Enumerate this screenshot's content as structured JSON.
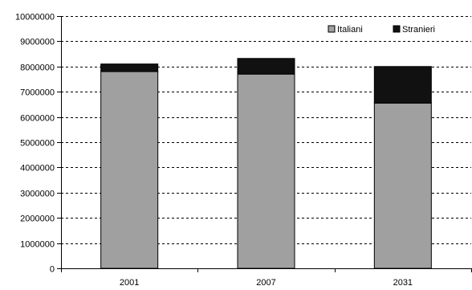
{
  "chart_data": {
    "type": "bar",
    "stacked": true,
    "title": "",
    "xlabel": "",
    "ylabel": "",
    "categories": [
      "2001",
      "2007",
      "2031"
    ],
    "series": [
      {
        "name": "Italiani",
        "color": "#a0a0a0",
        "values": [
          7800000,
          7700000,
          6550000
        ]
      },
      {
        "name": "Stranieri",
        "color": "#111111",
        "values": [
          300000,
          620000,
          1450000
        ]
      }
    ],
    "ylim": [
      0,
      10000000
    ],
    "yticks": [
      "0",
      "1000000",
      "2000000",
      "3000000",
      "4000000",
      "5000000",
      "6000000",
      "7000000",
      "8000000",
      "9000000",
      "10000000"
    ],
    "grid": true,
    "legend_position": "top-right"
  }
}
